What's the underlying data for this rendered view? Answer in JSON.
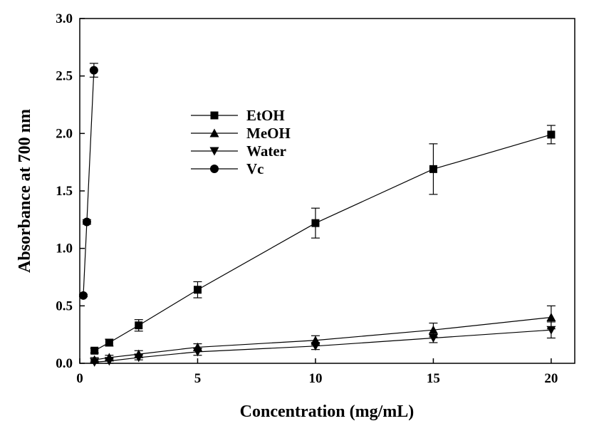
{
  "chart_data": {
    "type": "line",
    "xlabel": "Concentration (mg/mL)",
    "ylabel": "Absorbance at 700 nm",
    "xlim": [
      0,
      21
    ],
    "ylim": [
      0,
      3.0
    ],
    "xticks": [
      "0",
      "5",
      "10",
      "15",
      "20"
    ],
    "yticks": [
      "0.0",
      "0.5",
      "1.0",
      "1.5",
      "2.0",
      "2.5",
      "3.0"
    ],
    "grid": false,
    "legend_position": "upper-left-center",
    "series": [
      {
        "name": "EtOH",
        "marker": "square",
        "x": [
          0.625,
          1.25,
          2.5,
          5,
          10,
          15,
          20
        ],
        "y": [
          0.11,
          0.18,
          0.33,
          0.64,
          1.22,
          1.69,
          1.99
        ],
        "err": [
          0.02,
          0.03,
          0.05,
          0.07,
          0.13,
          0.22,
          0.08
        ]
      },
      {
        "name": "MeOH",
        "marker": "triangle-up",
        "x": [
          0.625,
          1.25,
          2.5,
          5,
          10,
          15,
          20
        ],
        "y": [
          0.03,
          0.05,
          0.08,
          0.14,
          0.2,
          0.29,
          0.4
        ],
        "err": [
          0.02,
          0.02,
          0.03,
          0.03,
          0.04,
          0.06,
          0.1
        ]
      },
      {
        "name": "Water",
        "marker": "triangle-down",
        "x": [
          0.625,
          1.25,
          2.5,
          5,
          10,
          15,
          20
        ],
        "y": [
          0.01,
          0.02,
          0.05,
          0.1,
          0.15,
          0.22,
          0.29
        ],
        "err": [
          0.01,
          0.02,
          0.02,
          0.03,
          0.03,
          0.04,
          0.07
        ]
      },
      {
        "name": "Vc",
        "marker": "circle",
        "x": [
          0.15,
          0.3,
          0.6
        ],
        "y": [
          0.59,
          1.23,
          2.55
        ],
        "err": [
          0.01,
          0.02,
          0.06
        ]
      }
    ]
  }
}
